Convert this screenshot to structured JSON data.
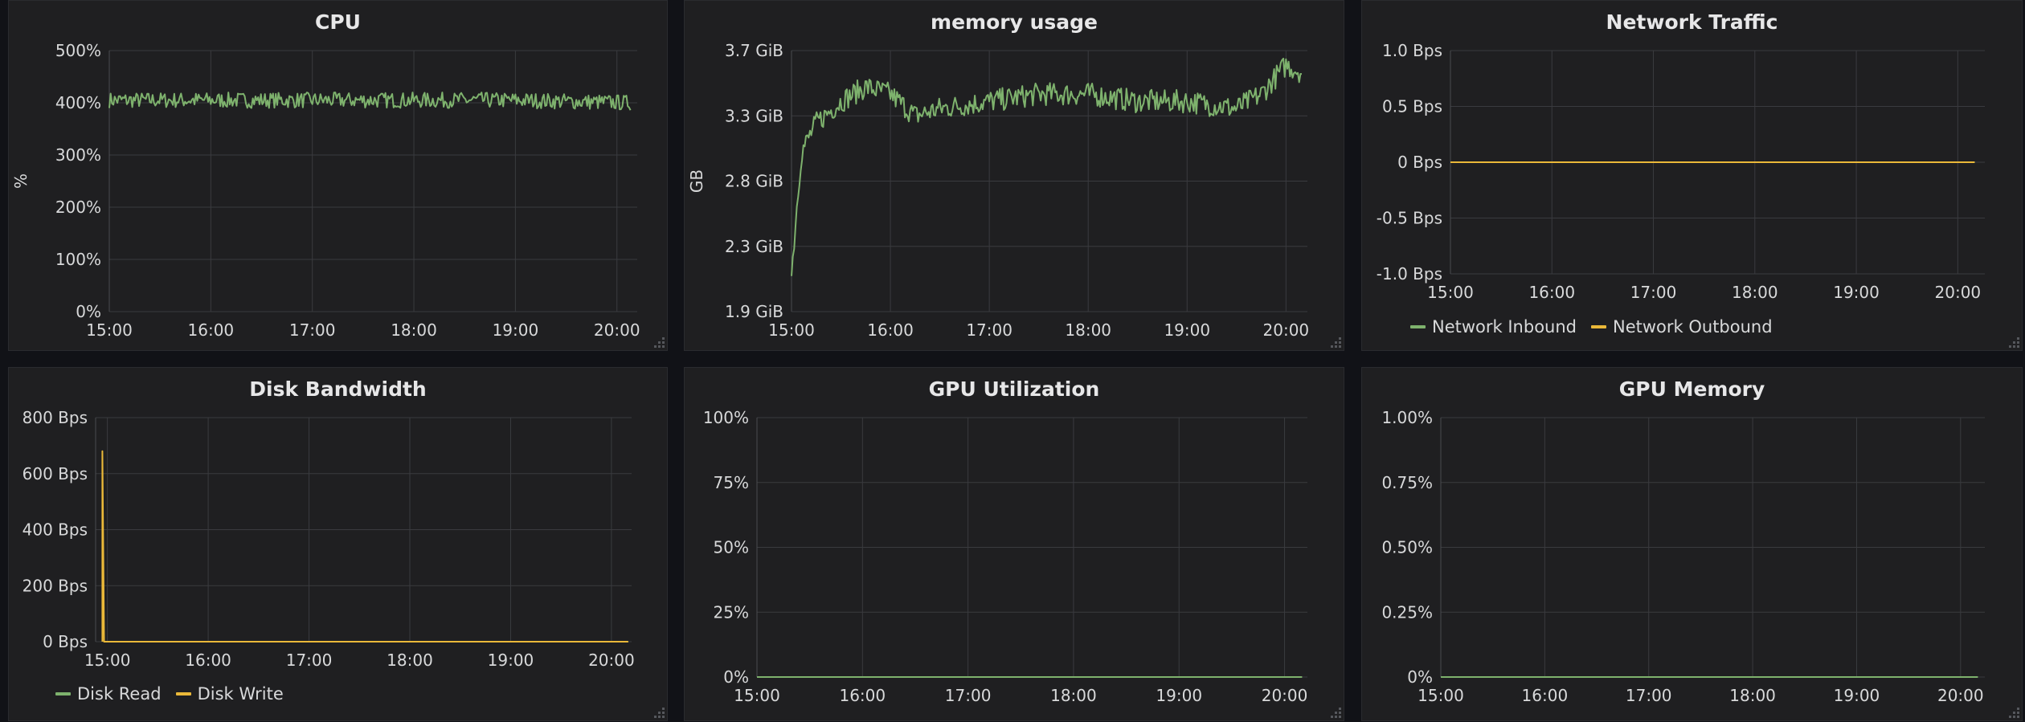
{
  "colors": {
    "series_green": "#7eb26d",
    "series_yellow": "#eab839",
    "grid": "#3a3b3f",
    "tick_text": "#d8d9da"
  },
  "time_ticks": [
    "15:00",
    "16:00",
    "17:00",
    "18:00",
    "19:00",
    "20:00"
  ],
  "panels": [
    {
      "id": "cpu",
      "title": "CPU",
      "ylabel": "%",
      "yticks": [
        "0%",
        "100%",
        "200%",
        "300%",
        "400%",
        "500%"
      ],
      "legend": []
    },
    {
      "id": "memory",
      "title": "memory usage",
      "ylabel": "GB",
      "yticks": [
        "1.9 GiB",
        "2.3 GiB",
        "2.8 GiB",
        "3.3 GiB",
        "3.7 GiB"
      ],
      "legend": []
    },
    {
      "id": "network",
      "title": "Network Traffic",
      "ylabel": "",
      "yticks": [
        "-1.0 Bps",
        "-0.5 Bps",
        "0 Bps",
        "0.5 Bps",
        "1.0 Bps"
      ],
      "legend": [
        {
          "label": "Network Inbound",
          "color": "#7eb26d"
        },
        {
          "label": "Network Outbound",
          "color": "#eab839"
        }
      ]
    },
    {
      "id": "disk",
      "title": "Disk Bandwidth",
      "ylabel": "",
      "yticks": [
        "0 Bps",
        "200 Bps",
        "400 Bps",
        "600 Bps",
        "800 Bps"
      ],
      "legend": [
        {
          "label": "Disk Read",
          "color": "#7eb26d"
        },
        {
          "label": "Disk Write",
          "color": "#eab839"
        }
      ]
    },
    {
      "id": "gpu_util",
      "title": "GPU Utilization",
      "ylabel": "",
      "yticks": [
        "0%",
        "25%",
        "50%",
        "75%",
        "100%"
      ],
      "legend": []
    },
    {
      "id": "gpu_mem",
      "title": "GPU Memory",
      "ylabel": "",
      "yticks": [
        "0%",
        "0.25%",
        "0.50%",
        "0.75%",
        "1.00%"
      ],
      "legend": []
    }
  ],
  "chart_data": [
    {
      "type": "line",
      "title": "CPU",
      "ylabel": "%",
      "x_range": [
        "15:00",
        "20:08"
      ],
      "ylim": [
        0,
        500
      ],
      "series": [
        {
          "color": "#7eb26d",
          "description_points": [
            [
              "15:00",
              405
            ],
            [
              "16:00",
              405
            ],
            [
              "17:00",
              405
            ],
            [
              "18:00",
              405
            ],
            [
              "19:00",
              405
            ],
            [
              "20:08",
              400
            ]
          ],
          "noise": 15
        }
      ]
    },
    {
      "type": "line",
      "title": "memory usage",
      "ylabel": "GB",
      "x_range": [
        "15:00",
        "20:10"
      ],
      "ylim": [
        1.9,
        3.7
      ],
      "series": [
        {
          "color": "#7eb26d",
          "description_points": [
            [
              "15:00",
              2.15
            ],
            [
              "15:03",
              2.6
            ],
            [
              "15:06",
              3.0
            ],
            [
              "15:15",
              3.2
            ],
            [
              "15:30",
              3.35
            ],
            [
              "15:45",
              3.45
            ],
            [
              "16:00",
              3.4
            ],
            [
              "16:15",
              3.25
            ],
            [
              "16:30",
              3.3
            ],
            [
              "17:00",
              3.35
            ],
            [
              "17:30",
              3.4
            ],
            [
              "18:00",
              3.4
            ],
            [
              "18:30",
              3.35
            ],
            [
              "19:00",
              3.35
            ],
            [
              "19:30",
              3.3
            ],
            [
              "19:45",
              3.4
            ],
            [
              "20:00",
              3.6
            ],
            [
              "20:10",
              3.55
            ]
          ],
          "noise": 0.08
        }
      ]
    },
    {
      "type": "line",
      "title": "Network Traffic",
      "x_range": [
        "15:00",
        "20:10"
      ],
      "ylim": [
        -1.0,
        1.0
      ],
      "series": [
        {
          "name": "Network Inbound",
          "color": "#7eb26d",
          "points": [
            [
              "15:00",
              0
            ],
            [
              "20:10",
              0
            ]
          ]
        },
        {
          "name": "Network Outbound",
          "color": "#eab839",
          "points": [
            [
              "15:00",
              0
            ],
            [
              "20:10",
              0
            ]
          ]
        }
      ]
    },
    {
      "type": "line",
      "title": "Disk Bandwidth",
      "x_range": [
        "15:00",
        "20:10"
      ],
      "ylim": [
        0,
        800
      ],
      "series": [
        {
          "name": "Disk Read",
          "color": "#7eb26d",
          "points": [
            [
              "15:00",
              0
            ],
            [
              "20:10",
              0
            ]
          ]
        },
        {
          "name": "Disk Write",
          "color": "#eab839",
          "points": [
            [
              "14:57",
              0
            ],
            [
              "14:57",
              680
            ],
            [
              "14:58",
              0
            ],
            [
              "20:10",
              0
            ]
          ]
        }
      ]
    },
    {
      "type": "line",
      "title": "GPU Utilization",
      "x_range": [
        "15:00",
        "20:10"
      ],
      "ylim": [
        0,
        100
      ],
      "series": [
        {
          "color": "#7eb26d",
          "points": [
            [
              "15:00",
              0
            ],
            [
              "20:10",
              0
            ]
          ]
        }
      ]
    },
    {
      "type": "line",
      "title": "GPU Memory",
      "x_range": [
        "15:00",
        "20:10"
      ],
      "ylim": [
        0,
        1.0
      ],
      "series": [
        {
          "color": "#7eb26d",
          "points": [
            [
              "15:00",
              0
            ],
            [
              "20:10",
              0
            ]
          ]
        }
      ]
    }
  ]
}
